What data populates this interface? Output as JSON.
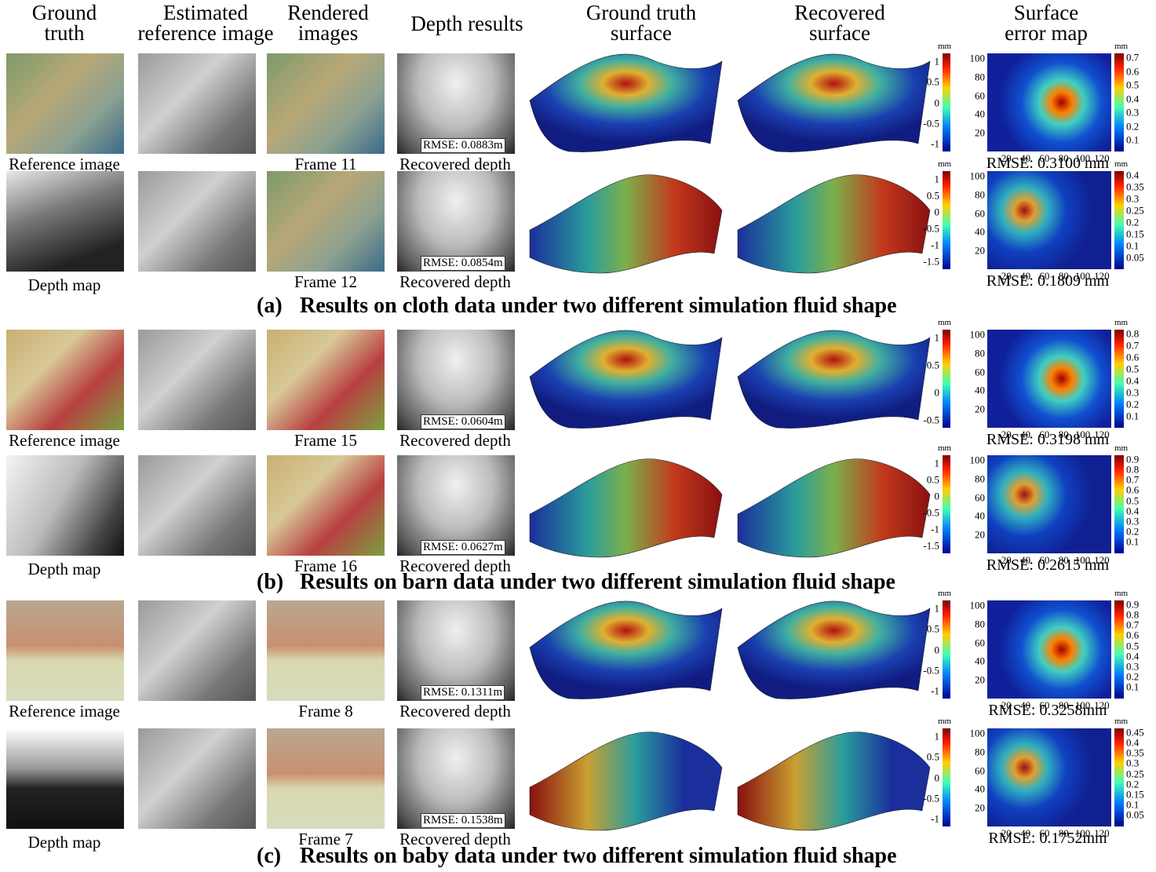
{
  "headers": [
    [
      "Ground",
      "truth"
    ],
    [
      "Estimated",
      "reference image"
    ],
    [
      "Rendered",
      "images"
    ],
    [
      "Depth results"
    ],
    [
      "Ground truth",
      "surface"
    ],
    [
      "Recovered",
      "surface"
    ],
    [
      "Surface",
      "error map"
    ]
  ],
  "sections": [
    {
      "label": "(a)",
      "caption": "Results on cloth data under two different simulation fluid shape",
      "rows": [
        {
          "gt_label": "Reference image",
          "frame": "Frame 11",
          "depth_rmse": "RMSE: 0.0883m",
          "depth_label": "Recovered depth",
          "surface_unit": "mm",
          "surface_ticks": [
            1,
            0.5,
            0,
            -0.5,
            -1
          ],
          "error_yticks": [
            100,
            80,
            60,
            40,
            20
          ],
          "error_xticks": [
            20,
            40,
            60,
            80,
            100,
            120
          ],
          "error_unit": "mm",
          "error_ticks": [
            0.7,
            0.6,
            0.5,
            0.4,
            0.3,
            0.2,
            0.1
          ],
          "error_rmse": "RMSE: 0.3100 mm"
        },
        {
          "gt_label": "Depth map",
          "frame": "Frame 12",
          "depth_rmse": "RMSE: 0.0854m",
          "depth_label": "Recovered depth",
          "surface_unit": "mm",
          "surface_ticks": [
            1,
            0.5,
            0,
            -0.5,
            -1,
            -1.5
          ],
          "error_yticks": [
            100,
            80,
            60,
            40,
            20
          ],
          "error_xticks": [
            20,
            40,
            60,
            80,
            100,
            120
          ],
          "error_unit": "mm",
          "error_ticks": [
            0.4,
            0.35,
            0.3,
            0.25,
            0.2,
            0.15,
            0.1,
            0.05
          ],
          "error_rmse": "RMSE: 0.1809 mm"
        }
      ]
    },
    {
      "label": "(b)",
      "caption": "Results on barn data under two different simulation fluid shape",
      "rows": [
        {
          "gt_label": "Reference image",
          "frame": "Frame 15",
          "depth_rmse": "RMSE: 0.0604m",
          "depth_label": "Recovered depth",
          "surface_unit": "mm",
          "surface_ticks": [
            1,
            0.5,
            0,
            -0.5
          ],
          "error_yticks": [
            100,
            80,
            60,
            40,
            20
          ],
          "error_xticks": [
            20,
            40,
            60,
            80,
            100,
            120
          ],
          "error_unit": "mm",
          "error_ticks": [
            0.8,
            0.7,
            0.6,
            0.5,
            0.4,
            0.3,
            0.2,
            0.1
          ],
          "error_rmse": "RMSE: 0.3198 mm"
        },
        {
          "gt_label": "Depth map",
          "frame": "Frame 16",
          "depth_rmse": "RMSE: 0.0627m",
          "depth_label": "Recovered depth",
          "surface_unit": "mm",
          "surface_ticks": [
            1,
            0.5,
            0,
            -0.5,
            -1,
            -1.5
          ],
          "error_yticks": [
            100,
            80,
            60,
            40,
            20
          ],
          "error_xticks": [
            20,
            40,
            60,
            80,
            100,
            120
          ],
          "error_unit": "mm",
          "error_ticks": [
            0.9,
            0.8,
            0.7,
            0.6,
            0.5,
            0.4,
            0.3,
            0.2,
            0.1
          ],
          "error_rmse": "RMSE: 0.2615 mm"
        }
      ]
    },
    {
      "label": "(c)",
      "caption": "Results on baby data under two different simulation fluid shape",
      "rows": [
        {
          "gt_label": "Reference image",
          "frame": "Frame 8",
          "depth_rmse": "RMSE: 0.1311m",
          "depth_label": "Recovered depth",
          "surface_unit": "mm",
          "surface_ticks": [
            1,
            0.5,
            0,
            -0.5,
            -1
          ],
          "error_yticks": [
            100,
            80,
            60,
            40,
            20
          ],
          "error_xticks": [
            20,
            40,
            60,
            80,
            100,
            120
          ],
          "error_unit": "mm",
          "error_ticks": [
            0.9,
            0.8,
            0.7,
            0.6,
            0.5,
            0.4,
            0.3,
            0.2,
            0.1
          ],
          "error_rmse": "RMSE: 0.3258mm"
        },
        {
          "gt_label": "Depth map",
          "frame": "Frame 7",
          "depth_rmse": "RMSE: 0.1538m",
          "depth_label": "Recovered depth",
          "surface_unit": "mm",
          "surface_ticks": [
            1,
            0.5,
            0,
            -0.5,
            -1
          ],
          "error_yticks": [
            100,
            80,
            60,
            40,
            20
          ],
          "error_xticks": [
            20,
            40,
            60,
            80,
            100,
            120
          ],
          "error_unit": "mm",
          "error_ticks": [
            0.45,
            0.4,
            0.35,
            0.3,
            0.25,
            0.2,
            0.15,
            0.1,
            0.05
          ],
          "error_rmse": "RMSE: 0.1752mm"
        }
      ]
    }
  ]
}
